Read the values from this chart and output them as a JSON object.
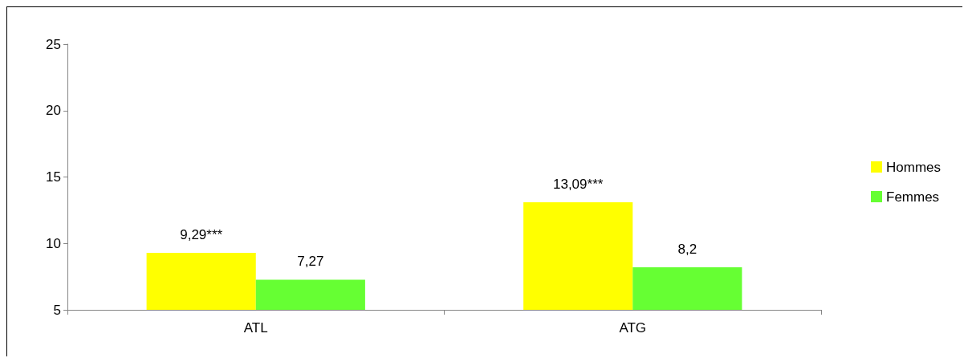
{
  "chart_data": {
    "type": "bar",
    "categories": [
      "ATL",
      "ATG"
    ],
    "series": [
      {
        "name": "Hommes",
        "color": "#ffff00",
        "values": [
          9.29,
          13.09
        ],
        "value_labels": [
          "9,29***",
          "13,09***"
        ]
      },
      {
        "name": "Femmes",
        "color": "#66ff33",
        "values": [
          7.27,
          8.2
        ],
        "value_labels": [
          "7,27",
          "8,2"
        ]
      }
    ],
    "ylim": [
      5,
      25
    ],
    "yticks": [
      5,
      10,
      15,
      20,
      25
    ],
    "grid": false,
    "legend": "right"
  }
}
